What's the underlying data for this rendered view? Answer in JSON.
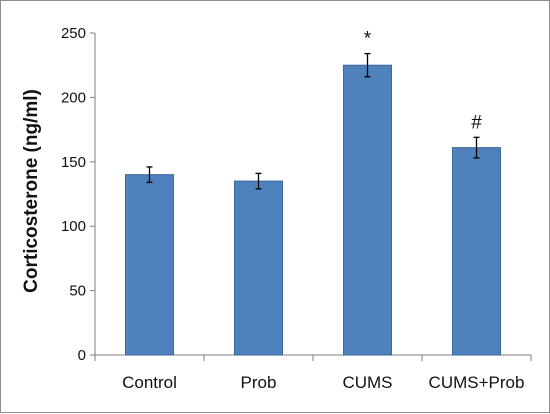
{
  "chart_data": {
    "type": "bar",
    "title": "",
    "xlabel": "",
    "ylabel": "Corticosterone (ng/ml)",
    "ylim": [
      0,
      250
    ],
    "yticks": [
      0,
      50,
      100,
      150,
      200,
      250
    ],
    "grid": false,
    "legend": "none",
    "categories": [
      "Control",
      "Prob",
      "CUMS",
      "CUMS+Prob"
    ],
    "values": [
      140,
      135,
      225,
      161
    ],
    "errors": [
      6,
      6,
      9,
      8
    ],
    "annotations": [
      "",
      "",
      "*",
      "#"
    ],
    "bar_color": "#4f81bd",
    "bar_edge_color": "#3a67a0"
  }
}
